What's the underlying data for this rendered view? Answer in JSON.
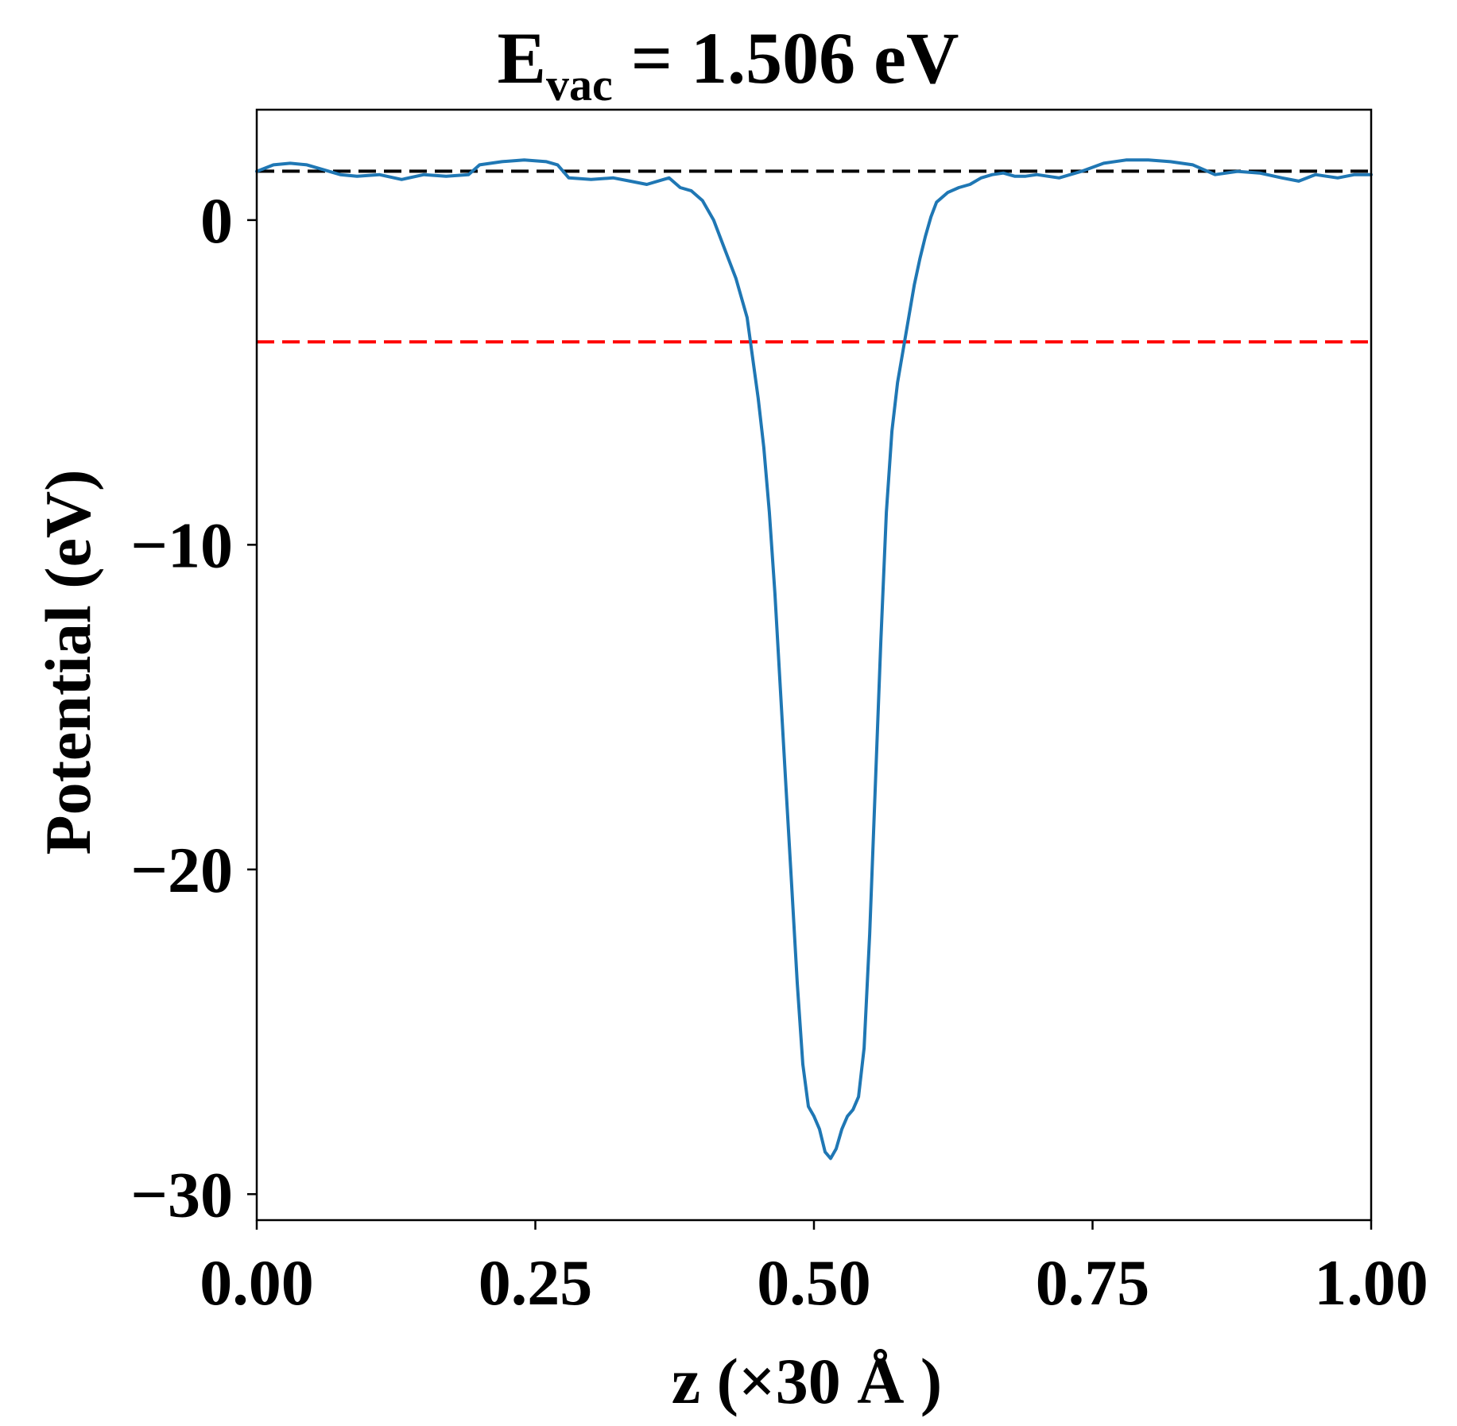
{
  "chart_data": {
    "type": "line",
    "title": {
      "main": "E",
      "sub": "vac",
      "rest": " = 1.506 eV"
    },
    "xlabel": "z (×30 Å )",
    "ylabel": "Potential (eV)",
    "xlim": [
      0.0,
      1.0
    ],
    "ylim": [
      -30.8,
      3.4
    ],
    "x_ticks": [
      0.0,
      0.25,
      0.5,
      0.75,
      1.0
    ],
    "x_tick_labels": [
      "0.00",
      "0.25",
      "0.50",
      "0.75",
      "1.00"
    ],
    "y_ticks": [
      0,
      -10,
      -20,
      -30
    ],
    "y_tick_labels": [
      "0",
      "−10",
      "−20",
      "−30"
    ],
    "grid": false,
    "legend": "none",
    "series": [
      {
        "color": "#1f77b4",
        "x": [
          0.0,
          0.015,
          0.03,
          0.045,
          0.06,
          0.075,
          0.09,
          0.11,
          0.13,
          0.15,
          0.17,
          0.19,
          0.2,
          0.22,
          0.24,
          0.26,
          0.27,
          0.28,
          0.3,
          0.32,
          0.335,
          0.35,
          0.365,
          0.37,
          0.38,
          0.39,
          0.4,
          0.41,
          0.42,
          0.43,
          0.44,
          0.45,
          0.455,
          0.46,
          0.465,
          0.47,
          0.475,
          0.48,
          0.485,
          0.49,
          0.495,
          0.5,
          0.505,
          0.51,
          0.515,
          0.52,
          0.525,
          0.53,
          0.535,
          0.54,
          0.545,
          0.55,
          0.555,
          0.56,
          0.565,
          0.57,
          0.575,
          0.58,
          0.585,
          0.59,
          0.595,
          0.6,
          0.605,
          0.61,
          0.62,
          0.63,
          0.64,
          0.65,
          0.66,
          0.67,
          0.68,
          0.69,
          0.7,
          0.72,
          0.74,
          0.76,
          0.78,
          0.8,
          0.82,
          0.84,
          0.86,
          0.88,
          0.9,
          0.92,
          0.935,
          0.95,
          0.97,
          0.985,
          1.0
        ],
        "y": [
          1.5,
          1.7,
          1.75,
          1.7,
          1.55,
          1.4,
          1.35,
          1.4,
          1.25,
          1.4,
          1.35,
          1.4,
          1.7,
          1.8,
          1.85,
          1.8,
          1.7,
          1.3,
          1.25,
          1.3,
          1.2,
          1.1,
          1.25,
          1.3,
          1.0,
          0.9,
          0.6,
          0.0,
          -0.9,
          -1.8,
          -3.0,
          -5.5,
          -7.0,
          -9.0,
          -11.5,
          -14.5,
          -17.5,
          -20.5,
          -23.5,
          -26.0,
          -27.3,
          -27.6,
          -28.0,
          -28.7,
          -28.9,
          -28.6,
          -28.0,
          -27.6,
          -27.4,
          -27.0,
          -25.5,
          -22.0,
          -17.5,
          -13.0,
          -9.0,
          -6.5,
          -5.0,
          -4.0,
          -3.0,
          -2.0,
          -1.2,
          -0.5,
          0.1,
          0.55,
          0.85,
          1.0,
          1.1,
          1.3,
          1.4,
          1.45,
          1.35,
          1.35,
          1.4,
          1.3,
          1.5,
          1.75,
          1.85,
          1.85,
          1.8,
          1.7,
          1.4,
          1.5,
          1.45,
          1.3,
          1.2,
          1.4,
          1.3,
          1.4,
          1.4
        ]
      }
    ],
    "hlines": [
      {
        "y": 1.506,
        "color": "#000000",
        "style": "dashed"
      },
      {
        "y": -3.75,
        "color": "#ff0000",
        "style": "dashed"
      }
    ]
  }
}
